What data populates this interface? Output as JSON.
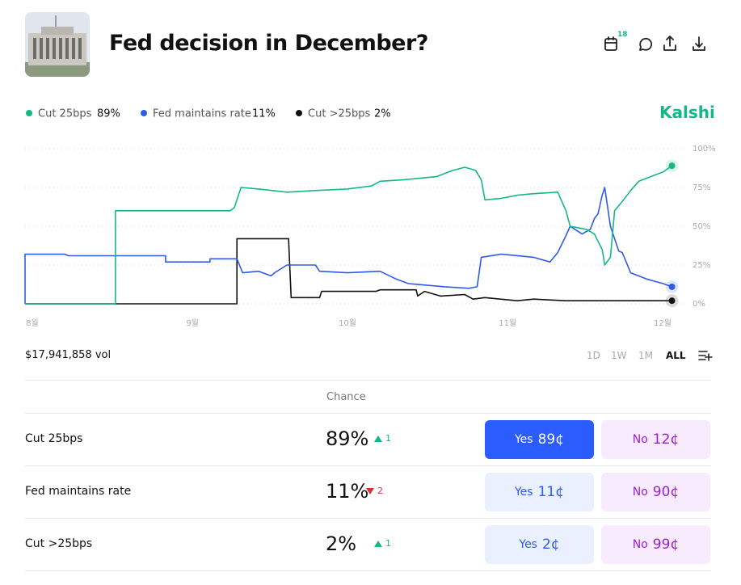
{
  "header": {
    "title": "Fed decision in December?",
    "calendar_badge": "18",
    "brand": "Kalshi"
  },
  "chart_data": {
    "type": "line",
    "series": [
      {
        "name": "Cut 25bps",
        "color": "#12b886",
        "x": [
          -1.4,
          16.1,
          16.1,
          38.3,
          39.1,
          40.4,
          43.8,
          49.3,
          54.8,
          61.0,
          65.7,
          67.3,
          72.0,
          78.2,
          81.4,
          83.7,
          85.8,
          86.9,
          87.6,
          90.8,
          93.9,
          97.0,
          101.7,
          103.3,
          104.1,
          107.2,
          108.8,
          110.3,
          110.8,
          111.9,
          112.7,
          114.2,
          115.8,
          117.4,
          120.5,
          122.1,
          123.8
        ],
        "values": [
          0,
          0,
          60,
          60,
          62,
          75,
          74,
          72,
          73,
          74,
          76,
          79,
          80,
          82,
          86,
          88,
          86,
          80,
          67,
          68,
          70,
          71,
          72,
          60,
          50,
          48,
          45,
          35,
          25,
          30,
          60,
          66,
          73,
          79,
          83,
          85,
          89
        ]
      },
      {
        "name": "Fed maintains rate",
        "color": "#2f5bea",
        "x": [
          -1.4,
          -1.4,
          6.3,
          7.0,
          25.8,
          25.8,
          34.4,
          34.4,
          39.6,
          40.7,
          43.8,
          46.2,
          46.9,
          49.3,
          54.8,
          55.6,
          61.0,
          67.3,
          70.4,
          72.8,
          79.8,
          84.5,
          86.1,
          86.9,
          90.8,
          97.0,
          100.2,
          101.7,
          103.3,
          104.1,
          106.4,
          108.0,
          108.8,
          109.5,
          110.3,
          110.8,
          111.9,
          113.5,
          114.2,
          115.8,
          118.9,
          122.1,
          123.8
        ],
        "values": [
          0,
          32,
          32,
          31,
          31,
          27,
          27,
          29,
          29,
          20,
          21,
          18,
          20,
          25,
          25,
          21,
          20,
          21,
          16,
          13,
          11,
          10,
          11,
          30,
          32,
          30,
          27,
          33,
          44,
          50,
          45,
          48,
          55,
          58,
          70,
          75,
          50,
          34,
          33,
          20,
          16,
          13,
          11
        ]
      },
      {
        "name": "Cut >25bps",
        "color": "#111111",
        "x": [
          -1.4,
          39.6,
          39.6,
          49.6,
          50.1,
          55.6,
          56.0,
          66.5,
          67.3,
          74.3,
          74.6,
          75.9,
          79.0,
          83.7,
          85.3,
          87.6,
          93.9,
          97.0,
          103.3,
          123.8
        ],
        "values": [
          0,
          0,
          42,
          42,
          4,
          4,
          8,
          8,
          9,
          9,
          5,
          8,
          5,
          6,
          3,
          4,
          2,
          3,
          2,
          2
        ]
      }
    ],
    "xlim": [
      -1.4,
      124.5
    ],
    "xticks": [
      {
        "value": 0,
        "label": "8월"
      },
      {
        "value": 31,
        "label": "9월"
      },
      {
        "value": 61,
        "label": "10월"
      },
      {
        "value": 92,
        "label": "11월"
      },
      {
        "value": 122,
        "label": "12월"
      }
    ],
    "ylim": [
      0,
      100
    ],
    "yticks": [
      {
        "value": 0,
        "label": "0%"
      },
      {
        "value": 25,
        "label": "25%"
      },
      {
        "value": 50,
        "label": "50%"
      },
      {
        "value": 75,
        "label": "75%"
      },
      {
        "value": 100,
        "label": "100%"
      }
    ],
    "grid": true
  },
  "volume": "$17,941,858 vol",
  "time_ranges": [
    "1D",
    "1W",
    "1M",
    "ALL"
  ],
  "selected_range": "ALL",
  "table": {
    "header": "Chance",
    "rows": [
      {
        "chance": "89%",
        "direction": "up",
        "change": 1,
        "yes": {
          "label": "Yes",
          "price": "89¢"
        },
        "no": {
          "label": "No",
          "price": "12¢"
        },
        "primary": true
      },
      {
        "chance": "11%",
        "direction": "down",
        "change": 2,
        "yes": {
          "label": "Yes",
          "price": "11¢"
        },
        "no": {
          "label": "No",
          "price": "90¢"
        },
        "primary": false
      },
      {
        "chance": "2%",
        "direction": "up",
        "change": 1,
        "yes": {
          "label": "Yes",
          "price": "2¢"
        },
        "no": {
          "label": "No",
          "price": "99¢"
        },
        "primary": false
      }
    ]
  }
}
